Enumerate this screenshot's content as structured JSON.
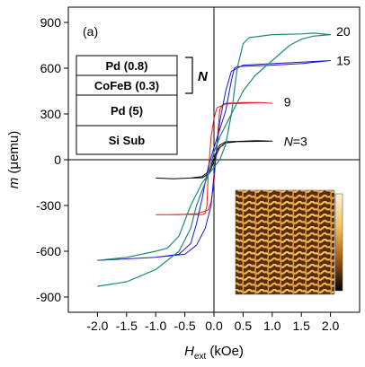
{
  "chart_data": {
    "type": "line",
    "panel_label": "(a)",
    "xlabel": {
      "prefix": "H",
      "sub": "ext",
      "suffix": " (kOe)"
    },
    "ylabel": {
      "prefix": "m",
      "suffix": " (μemu)"
    },
    "xlim": [
      -2.5,
      2.5
    ],
    "ylim": [
      -1000,
      1000
    ],
    "x_ticks": [
      -2.0,
      -1.5,
      -1.0,
      -0.5,
      0.0,
      0.5,
      1.0,
      1.5,
      2.0
    ],
    "x_tick_labels": [
      "-2.0",
      "-1.5",
      "-1.0",
      "-0.5",
      "0.0",
      "0.5",
      "1.0",
      "1.5",
      "2.0"
    ],
    "y_ticks": [
      900,
      600,
      300,
      0,
      -300,
      -600,
      -900
    ],
    "y_tick_labels": [
      "900",
      "600",
      "300",
      "0",
      "-300",
      "-600",
      "-900"
    ],
    "grid": false,
    "zero_lines": true,
    "series": [
      {
        "name": "N=3",
        "color": "#000000",
        "width": 1.0,
        "x": [
          -1.0,
          -0.7,
          -0.4,
          -0.2,
          -0.1,
          -0.05,
          0.0,
          0.05,
          0.1,
          0.2,
          0.4,
          0.7,
          1.0,
          0.7,
          0.4,
          0.2,
          0.1,
          0.05,
          0.0,
          -0.05,
          -0.1,
          -0.2,
          -0.4,
          -0.7,
          -1.0
        ],
        "y": [
          -120,
          -125,
          -120,
          -110,
          -80,
          -40,
          10,
          60,
          95,
          118,
          120,
          125,
          122,
          120,
          118,
          110,
          80,
          40,
          -10,
          -60,
          -95,
          -118,
          -120,
          -125,
          -120
        ]
      },
      {
        "name": "9",
        "color": "#e41e1e",
        "width": 1.0,
        "x": [
          -1.0,
          -0.6,
          -0.3,
          -0.1,
          -0.05,
          0.0,
          0.05,
          0.1,
          0.15,
          0.2,
          0.5,
          0.8,
          1.0,
          0.8,
          0.5,
          0.2,
          0.05,
          0.0,
          -0.05,
          -0.1,
          -0.12,
          -0.15,
          -0.2,
          -0.5,
          -0.8,
          -1.0
        ],
        "y": [
          -360,
          -360,
          -355,
          -330,
          -280,
          -150,
          100,
          330,
          360,
          370,
          375,
          375,
          370,
          375,
          370,
          365,
          340,
          270,
          150,
          -100,
          -300,
          -350,
          -360,
          -358,
          -360,
          -360
        ]
      },
      {
        "name": "15",
        "color": "#1a1acc",
        "width": 1.0,
        "x": [
          -2.0,
          -1.5,
          -1.0,
          -0.6,
          -0.4,
          -0.3,
          -0.2,
          -0.1,
          0.0,
          0.1,
          0.2,
          0.25,
          0.3,
          0.35,
          0.4,
          0.7,
          1.0,
          1.5,
          2.0,
          1.5,
          1.0,
          0.5,
          0.3,
          0.2,
          0.1,
          0.05,
          0.0,
          -0.05,
          -0.15,
          -0.3,
          -0.5,
          -1.0,
          -1.5,
          -2.0
        ],
        "y": [
          -660,
          -650,
          -640,
          -620,
          -550,
          -420,
          -250,
          -50,
          80,
          200,
          320,
          420,
          520,
          600,
          610,
          615,
          620,
          630,
          650,
          640,
          630,
          620,
          580,
          450,
          250,
          80,
          -100,
          -300,
          -450,
          -560,
          -620,
          -640,
          -650,
          -660
        ]
      },
      {
        "name": "20",
        "color": "#1f8a7c",
        "width": 1.2,
        "x": [
          -2.0,
          -1.5,
          -1.0,
          -0.6,
          -0.4,
          -0.3,
          -0.2,
          -0.1,
          0.0,
          0.1,
          0.3,
          0.5,
          0.7,
          1.0,
          1.3,
          1.5,
          1.7,
          2.0,
          1.7,
          1.5,
          1.0,
          0.6,
          0.5,
          0.4,
          0.3,
          0.2,
          0.1,
          0.0,
          -0.2,
          -0.4,
          -0.6,
          -0.8,
          -1.0,
          -1.5,
          -2.0
        ],
        "y": [
          -830,
          -800,
          -720,
          -600,
          -450,
          -300,
          -200,
          -100,
          50,
          150,
          300,
          450,
          550,
          650,
          750,
          790,
          810,
          820,
          830,
          825,
          820,
          800,
          760,
          600,
          300,
          100,
          0,
          -50,
          -150,
          -300,
          -500,
          -580,
          -600,
          -640,
          -660
        ]
      }
    ],
    "series_labels": [
      {
        "text": "20",
        "x": 2.1,
        "y": 840
      },
      {
        "text": "15",
        "x": 2.1,
        "y": 650
      },
      {
        "text": "9",
        "x": 1.2,
        "y": 380
      },
      {
        "text": "N=3",
        "x": 1.2,
        "y": 120
      }
    ],
    "layer_stack": {
      "layers": [
        "Pd (0.8)",
        "CoFeB (0.3)",
        "Pd (5)",
        "Si Sub"
      ],
      "repeat_label": "N"
    },
    "afm_inset": {
      "description_colorbar": [
        "#fff4d6",
        "#f0c060",
        "#b06010",
        "#3a1a05",
        "#000000"
      ]
    }
  }
}
